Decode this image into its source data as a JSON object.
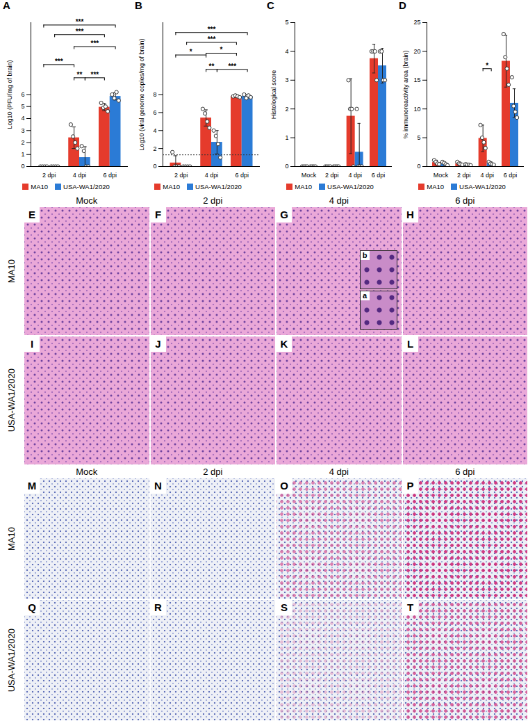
{
  "chart_data": [
    {
      "type": "bar",
      "panel": "A",
      "y_label": "Log10 (PFU/mg of brain)",
      "categories": [
        "2 dpi",
        "4 dpi",
        "6 dpi"
      ],
      "series": [
        {
          "name": "MA10",
          "color": "#e53b2c",
          "values": [
            0,
            2.4,
            4.95
          ],
          "errors": [
            0,
            0.9,
            0.3
          ],
          "points": [
            [
              0,
              0,
              0,
              0
            ],
            [
              3.5,
              2.5,
              2.0,
              1.5
            ],
            [
              5.3,
              4.9,
              5.0,
              4.6
            ]
          ]
        },
        {
          "name": "USA-WA1/2020",
          "color": "#2b7bd6",
          "values": [
            0,
            0.75,
            5.85
          ],
          "errors": [
            0,
            0.9,
            0.3
          ],
          "points": [
            [
              0,
              0,
              0,
              0
            ],
            [
              1.7,
              1.3,
              0,
              0
            ],
            [
              6.0,
              5.7,
              6.2,
              5.5
            ]
          ]
        }
      ],
      "ylim": [
        0,
        12
      ],
      "yticks": [
        0,
        1,
        2,
        3,
        4,
        5,
        6
      ],
      "legend": "bottom",
      "brackets": [
        {
          "text": "***",
          "from": [
            "2 dpi",
            "MA10"
          ],
          "to": [
            "6 dpi",
            "USA-WA1/2020"
          ],
          "y": 11.8
        },
        {
          "text": "***",
          "from": [
            "2 dpi",
            "USA-WA1/2020"
          ],
          "to": [
            "6 dpi",
            "MA10"
          ],
          "y": 11.0
        },
        {
          "text": "***",
          "from": [
            "4 dpi",
            "MA10"
          ],
          "to": [
            "6 dpi",
            "USA-WA1/2020"
          ],
          "y": 10.0
        },
        {
          "text": "***",
          "from": [
            "2 dpi",
            "MA10"
          ],
          "to": [
            "4 dpi",
            "MA10"
          ],
          "y": 8.5
        },
        {
          "text": "**",
          "from": [
            "4 dpi",
            "MA10"
          ],
          "to": [
            "4 dpi",
            "USA-WA1/2020"
          ],
          "y": 7.4
        },
        {
          "text": "***",
          "from": [
            "4 dpi",
            "USA-WA1/2020"
          ],
          "to": [
            "6 dpi",
            "MA10"
          ],
          "y": 7.4
        }
      ]
    },
    {
      "type": "bar",
      "panel": "B",
      "y_label": "Log10 (viral genome copies/mg of brain)",
      "categories": [
        "2 dpi",
        "4 dpi",
        "6 dpi"
      ],
      "series": [
        {
          "name": "MA10",
          "color": "#e53b2c",
          "values": [
            0.4,
            5.4,
            7.8
          ],
          "errors": [
            0.8,
            0.9,
            0.1
          ],
          "points": [
            [
              1.6,
              0,
              0,
              0
            ],
            [
              6.4,
              5.9,
              5.0,
              4.3
            ],
            [
              7.8,
              7.9,
              7.8,
              7.7
            ]
          ]
        },
        {
          "name": "USA-WA1/2020",
          "color": "#2b7bd6",
          "values": [
            0,
            2.7,
            7.8
          ],
          "errors": [
            0,
            1.3,
            0.2
          ],
          "points": [
            [
              0,
              0,
              0,
              0
            ],
            [
              4.0,
              3.4,
              2.5,
              1.0
            ],
            [
              8.0,
              7.6,
              7.9,
              7.7
            ]
          ]
        }
      ],
      "ylim": [
        0,
        16
      ],
      "yticks": [
        0,
        2,
        4,
        6,
        8
      ],
      "legend": "bottom",
      "reference_line": 1.3,
      "brackets": [
        {
          "text": "***",
          "from": [
            "2 dpi",
            "MA10"
          ],
          "to": [
            "6 dpi",
            "USA-WA1/2020"
          ],
          "y": 14.9
        },
        {
          "text": "***",
          "from": [
            "2 dpi",
            "USA-WA1/2020"
          ],
          "to": [
            "6 dpi",
            "MA10"
          ],
          "y": 13.8
        },
        {
          "text": "*",
          "from": [
            "2 dpi",
            "MA10"
          ],
          "to": [
            "4 dpi",
            "MA10"
          ],
          "y": 12.4
        },
        {
          "text": "*",
          "from": [
            "4 dpi",
            "MA10"
          ],
          "to": [
            "6 dpi",
            "MA10"
          ],
          "y": 12.6
        },
        {
          "text": "**",
          "from": [
            "4 dpi",
            "MA10"
          ],
          "to": [
            "4 dpi",
            "USA-WA1/2020"
          ],
          "y": 10.8
        },
        {
          "text": "***",
          "from": [
            "4 dpi",
            "USA-WA1/2020"
          ],
          "to": [
            "6 dpi",
            "USA-WA1/2020"
          ],
          "y": 10.8
        }
      ]
    },
    {
      "type": "bar",
      "panel": "C",
      "y_label": "Histological score",
      "categories": [
        "Mock",
        "2 dpi",
        "4 dpi",
        "6 dpi"
      ],
      "series": [
        {
          "name": "MA10",
          "color": "#e53b2c",
          "values": [
            0,
            0,
            1.75,
            3.75
          ],
          "errors": [
            0,
            0,
            1.3,
            0.5
          ],
          "points": [
            [
              0,
              0,
              0,
              0
            ],
            [
              0,
              0,
              0,
              0
            ],
            [
              3,
              2,
              2,
              0
            ],
            [
              4,
              4,
              4,
              3
            ]
          ]
        },
        {
          "name": "USA-WA1/2020",
          "color": "#2b7bd6",
          "values": [
            0,
            0,
            0.5,
            3.5
          ],
          "errors": [
            0,
            0,
            1.0,
            0.6
          ],
          "points": [
            [
              0,
              0,
              0,
              0
            ],
            [
              0,
              0,
              0,
              0
            ],
            [
              2,
              0,
              0,
              0
            ],
            [
              4,
              4,
              3,
              3
            ]
          ]
        }
      ],
      "ylim": [
        0,
        5
      ],
      "yticks": [
        0,
        1,
        2,
        3,
        4,
        5
      ],
      "legend": "bottom",
      "brackets": []
    },
    {
      "type": "bar",
      "panel": "D",
      "y_label": "% immunoreactivity area (brain)",
      "categories": [
        "Mock",
        "2 dpi",
        "4 dpi",
        "6 dpi"
      ],
      "series": [
        {
          "name": "MA10",
          "color": "#e53b2c",
          "values": [
            0.7,
            0.5,
            4.9,
            18.3
          ],
          "errors": [
            0.4,
            0.3,
            2.3,
            4.5
          ],
          "points": [
            [
              1.1,
              0.8,
              0.5,
              0.4
            ],
            [
              0.8,
              0.5,
              0.4,
              0.3
            ],
            [
              7.2,
              5.0,
              4.2,
              3.2
            ],
            [
              23,
              19,
              17,
              14.2
            ]
          ]
        },
        {
          "name": "USA-WA1/2020",
          "color": "#2b7bd6",
          "values": [
            0.5,
            0.3,
            0.5,
            11.0
          ],
          "errors": [
            0.3,
            0.2,
            0.3,
            2.5
          ],
          "points": [
            [
              0.8,
              0.6,
              0.4,
              0.2
            ],
            [
              0.4,
              0.3,
              0.3,
              0.2
            ],
            [
              0.8,
              0.5,
              0.4,
              0.3
            ],
            [
              15.5,
              10.5,
              9.5,
              8.5
            ]
          ]
        }
      ],
      "ylim": [
        0,
        25
      ],
      "yticks": [
        0,
        5,
        10,
        15,
        20,
        25
      ],
      "legend": "bottom",
      "brackets": [
        {
          "text": "*",
          "from": [
            "4 dpi",
            "MA10"
          ],
          "to": [
            "4 dpi",
            "USA-WA1/2020"
          ],
          "y": 17
        }
      ]
    }
  ],
  "figure_panels": {
    "he": {
      "column_labels": [
        "Mock",
        "2 dpi",
        "4 dpi",
        "6 dpi"
      ],
      "row_labels": [
        "MA10",
        "USA-WA1/2020"
      ],
      "panels": [
        "E",
        "F",
        "G",
        "H",
        "I",
        "J",
        "K",
        "L"
      ],
      "insets": {
        "G": [
          "b",
          "a"
        ]
      }
    },
    "ihc": {
      "column_labels": [
        "Mock",
        "2 dpi",
        "4 dpi",
        "6 dpi"
      ],
      "row_labels": [
        "MA10",
        "USA-WA1/2020"
      ],
      "panels": [
        "M",
        "N",
        "O",
        "P",
        "Q",
        "R",
        "S",
        "T"
      ],
      "insets": {}
    }
  }
}
